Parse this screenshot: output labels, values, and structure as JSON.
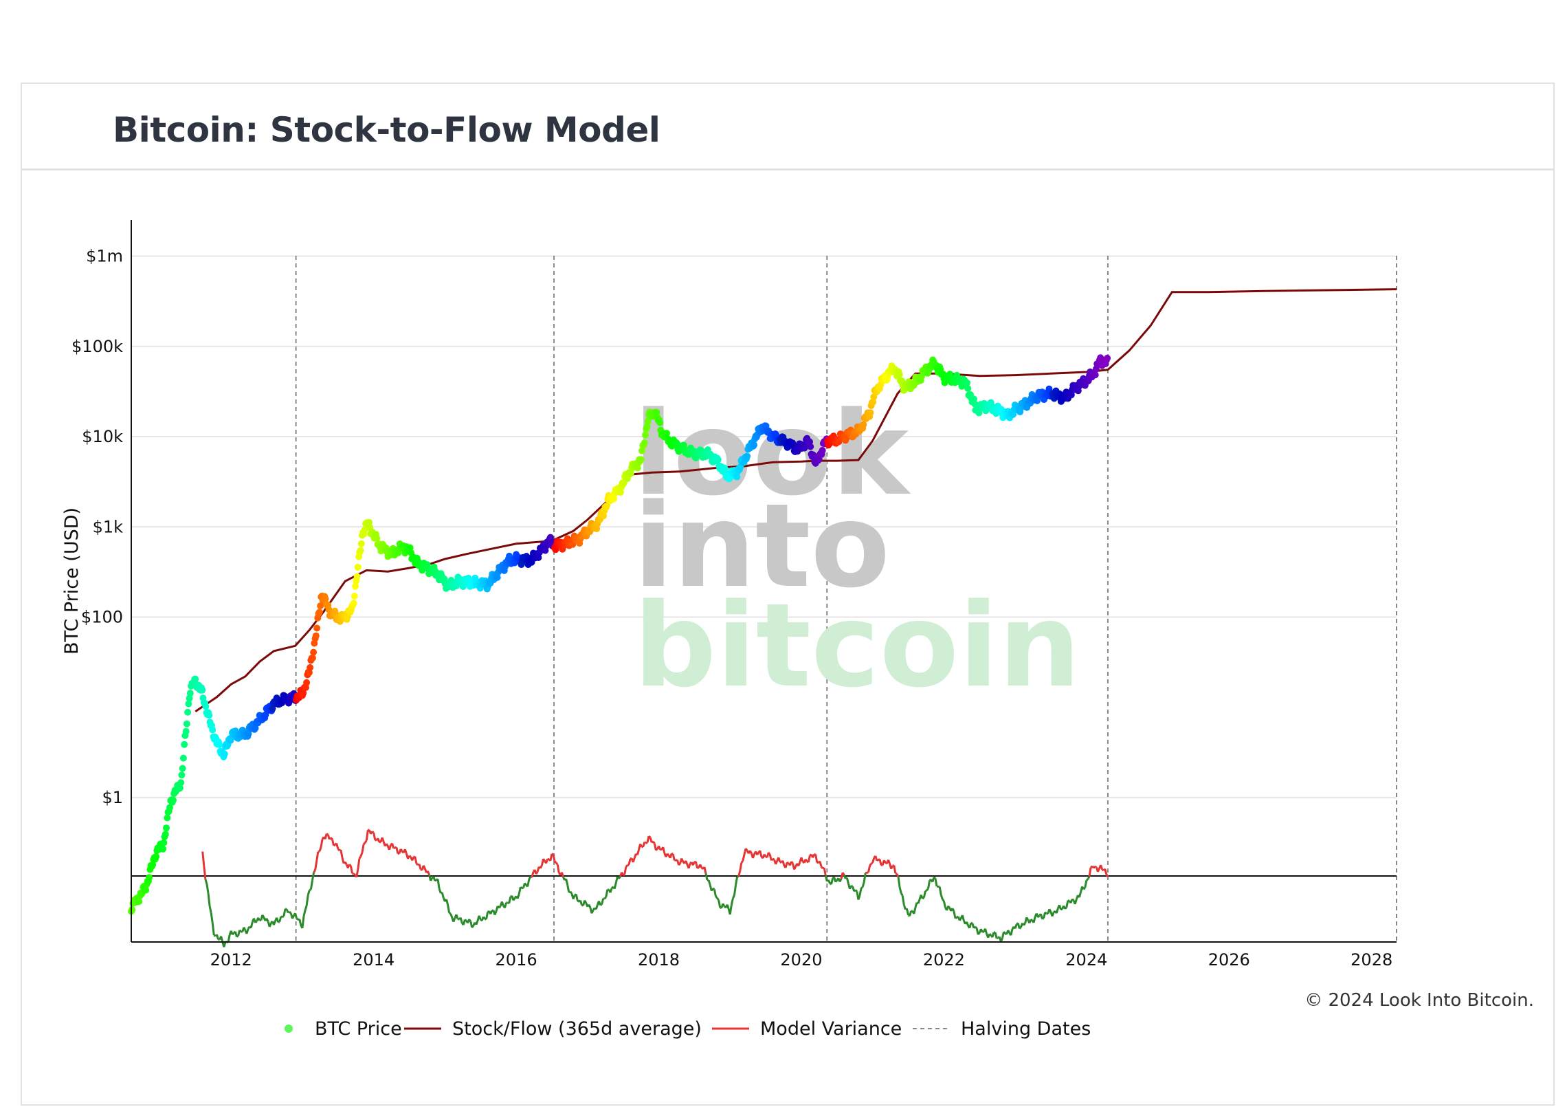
{
  "page": {
    "title": "Bitcoin: Stock-to-Flow Model",
    "copyright": "© 2024 Look Into Bitcoin."
  },
  "watermark": {
    "line1": "look",
    "line2": "into",
    "line3": "bitcoin",
    "color_top": "#c8c8c8",
    "color_bottom": "#cfeed4"
  },
  "chart_data": {
    "type": "scatter",
    "title": "Bitcoin: Stock-to-Flow Model",
    "xlabel": "",
    "ylabel": "BTC Price (USD)",
    "yscale": "log",
    "xlim": [
      2010.6,
      2028.35
    ],
    "ylim_log10": [
      -1.6,
      6.4
    ],
    "y_ticks": [
      {
        "value": 1,
        "label": "$1"
      },
      {
        "value": 100,
        "label": "$100"
      },
      {
        "value": 1000,
        "label": "$1k"
      },
      {
        "value": 10000,
        "label": "$10k"
      },
      {
        "value": 100000,
        "label": "$100k"
      },
      {
        "value": 1000000,
        "label": "$1m"
      }
    ],
    "x_ticks": [
      2012,
      2014,
      2016,
      2018,
      2020,
      2022,
      2024,
      2026,
      2028
    ],
    "grid": true,
    "legend": [
      {
        "label": "BTC Price",
        "kind": "marker",
        "color": "#5ef55e"
      },
      {
        "label": "Stock/Flow (365d average)",
        "kind": "line",
        "color": "#7a0a0a"
      },
      {
        "label": "Model Variance",
        "kind": "line",
        "color": "#e53333"
      },
      {
        "label": "Halving Dates",
        "kind": "dash",
        "color": "#888888"
      }
    ],
    "legend_position": "bottom-center",
    "halving_dates": [
      2012.91,
      2016.53,
      2020.36,
      2024.3,
      2028.35
    ],
    "series": [
      {
        "name": "BTC Price",
        "x": [
          2010.6,
          2010.8,
          2010.95,
          2011.05,
          2011.15,
          2011.3,
          2011.42,
          2011.5,
          2011.6,
          2011.7,
          2011.8,
          2011.9,
          2012.0,
          2012.1,
          2012.2,
          2012.3,
          2012.45,
          2012.6,
          2012.7,
          2012.9,
          2013.0,
          2013.1,
          2013.2,
          2013.27,
          2013.4,
          2013.55,
          2013.7,
          2013.85,
          2013.92,
          2014.0,
          2014.1,
          2014.25,
          2014.4,
          2014.5,
          2014.6,
          2014.75,
          2014.9,
          2015.05,
          2015.2,
          2015.4,
          2015.6,
          2015.8,
          2015.9,
          2016.0,
          2016.2,
          2016.4,
          2016.45,
          2016.55,
          2016.7,
          2016.9,
          2017.0,
          2017.15,
          2017.3,
          2017.45,
          2017.6,
          2017.75,
          2017.85,
          2017.95,
          2018.05,
          2018.15,
          2018.3,
          2018.5,
          2018.7,
          2018.85,
          2018.95,
          2019.1,
          2019.3,
          2019.45,
          2019.6,
          2019.8,
          2019.95,
          2020.1,
          2020.2,
          2020.35,
          2020.5,
          2020.65,
          2020.8,
          2020.95,
          2021.05,
          2021.2,
          2021.3,
          2021.45,
          2021.6,
          2021.75,
          2021.87,
          2022.0,
          2022.15,
          2022.3,
          2022.45,
          2022.6,
          2022.8,
          2022.9,
          2023.0,
          2023.15,
          2023.3,
          2023.5,
          2023.7,
          2023.85,
          2024.0,
          2024.1,
          2024.2,
          2024.3
        ],
        "values": [
          0.06,
          0.1,
          0.25,
          0.3,
          0.9,
          1.5,
          15,
          20,
          14,
          7,
          4,
          3,
          5,
          5,
          5,
          6,
          8,
          11,
          12,
          13,
          14,
          25,
          70,
          180,
          110,
          95,
          120,
          900,
          1100,
          800,
          600,
          500,
          600,
          550,
          400,
          350,
          300,
          220,
          250,
          240,
          230,
          350,
          420,
          440,
          420,
          600,
          700,
          620,
          650,
          750,
          900,
          1100,
          2000,
          2600,
          4200,
          5500,
          16000,
          19000,
          11000,
          9000,
          7500,
          6500,
          6400,
          5000,
          3700,
          4000,
          8000,
          13000,
          10000,
          8500,
          7200,
          9000,
          5000,
          9000,
          9200,
          10500,
          11500,
          18000,
          33000,
          48000,
          58000,
          35000,
          40000,
          55000,
          65000,
          45000,
          43000,
          40000,
          20000,
          22000,
          19000,
          17000,
          20000,
          23000,
          28000,
          30000,
          27000,
          35000,
          42000,
          50000,
          70000,
          65000
        ]
      },
      {
        "name": "Stock/Flow (365d average)",
        "x": [
          2011.5,
          2011.8,
          2012.0,
          2012.2,
          2012.4,
          2012.6,
          2012.9,
          2013.1,
          2013.3,
          2013.6,
          2013.9,
          2014.2,
          2014.5,
          2014.8,
          2015.0,
          2015.3,
          2015.6,
          2016.0,
          2016.5,
          2016.8,
          2017.0,
          2017.3,
          2017.6,
          2017.9,
          2018.3,
          2018.8,
          2019.2,
          2019.6,
          2020.0,
          2020.2,
          2020.5,
          2020.8,
          2021.0,
          2021.35,
          2021.6,
          2022.0,
          2022.5,
          2023.0,
          2023.5,
          2024.0,
          2024.3,
          2024.6,
          2024.9,
          2025.2,
          2025.7,
          2026.5,
          2027.5,
          2028.35
        ],
        "values": [
          9,
          13,
          18,
          22,
          32,
          42,
          48,
          72,
          115,
          250,
          330,
          320,
          350,
          390,
          440,
          500,
          560,
          650,
          700,
          900,
          1200,
          2000,
          3800,
          4000,
          4100,
          4500,
          4700,
          5200,
          5300,
          5400,
          5400,
          5500,
          9000,
          30000,
          50000,
          50000,
          47000,
          48000,
          50000,
          52000,
          55000,
          90000,
          170000,
          400000,
          400000,
          410000,
          420000,
          430000
        ]
      },
      {
        "name": "Model Variance",
        "x": [
          2011.6,
          2011.75,
          2011.9,
          2012.0,
          2012.2,
          2012.4,
          2012.6,
          2012.8,
          2013.0,
          2013.15,
          2013.3,
          2013.45,
          2013.6,
          2013.75,
          2013.92,
          2014.1,
          2014.3,
          2014.5,
          2014.7,
          2014.9,
          2015.1,
          2015.4,
          2015.7,
          2016.0,
          2016.3,
          2016.5,
          2016.8,
          2017.1,
          2017.4,
          2017.6,
          2017.85,
          2018.0,
          2018.3,
          2018.6,
          2018.85,
          2019.0,
          2019.2,
          2019.5,
          2019.7,
          2019.9,
          2020.2,
          2020.4,
          2020.6,
          2020.8,
          2021.0,
          2021.3,
          2021.5,
          2021.7,
          2021.87,
          2022.0,
          2022.2,
          2022.5,
          2022.8,
          2023.0,
          2023.3,
          2023.6,
          2023.9,
          2024.1,
          2024.3
        ],
        "values": [
          0.32,
          -0.8,
          -1.0,
          -0.85,
          -0.8,
          -0.6,
          -0.7,
          -0.5,
          -0.7,
          0.0,
          0.6,
          0.5,
          0.2,
          0.0,
          0.66,
          0.5,
          0.4,
          0.3,
          0.1,
          -0.1,
          -0.6,
          -0.7,
          -0.5,
          -0.3,
          0.1,
          0.3,
          -0.3,
          -0.5,
          -0.1,
          0.2,
          0.55,
          0.4,
          0.2,
          0.15,
          -0.4,
          -0.5,
          0.35,
          0.3,
          0.2,
          0.15,
          0.3,
          -0.1,
          0.0,
          -0.3,
          0.25,
          0.15,
          -0.6,
          -0.3,
          0.0,
          -0.4,
          -0.6,
          -0.8,
          -0.9,
          -0.75,
          -0.6,
          -0.5,
          -0.3,
          0.15,
          0.05
        ]
      }
    ]
  }
}
